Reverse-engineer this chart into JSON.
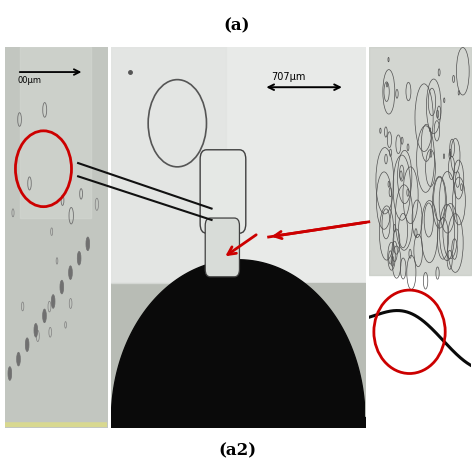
{
  "title_top": "(a)",
  "title_bottom": "(a2)",
  "bg_color": "#ffffff",
  "left_bg": "#c2c6c0",
  "left_light": "#d4d8d2",
  "center_bg": "#b8bcb5",
  "center_light": "#dcdedd",
  "center_lighter": "#e8eae8",
  "right_bg": "#b0b4ae",
  "right_light": "#c8ccc6",
  "dark_blob": "#0a0a0a",
  "arrow_black": "#111111",
  "arrow_red": "#cc0000",
  "red_circle": "#cc0000",
  "title_fontsize": 12,
  "subtitle_fontsize": 12
}
